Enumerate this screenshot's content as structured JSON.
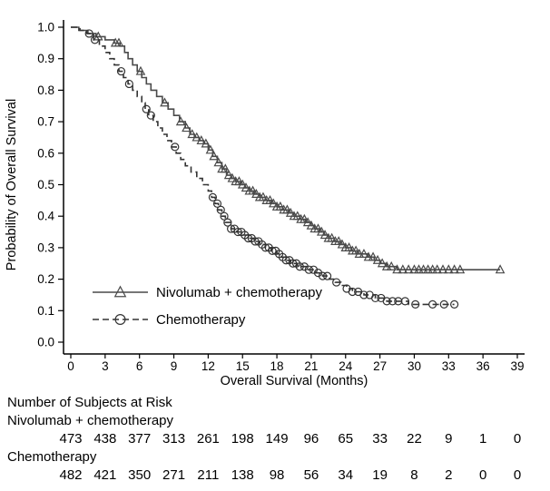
{
  "chart_data": {
    "type": "line",
    "subtype": "kaplan-meier-step",
    "title": "",
    "xlabel": "Overall Survival (Months)",
    "ylabel": "Probability of Overall Survival",
    "xlim": [
      0,
      39
    ],
    "ylim": [
      0.0,
      1.0
    ],
    "xticks": [
      0,
      3,
      6,
      9,
      12,
      15,
      18,
      21,
      24,
      27,
      30,
      33,
      36,
      39
    ],
    "yticks": [
      0.0,
      0.1,
      0.2,
      0.3,
      0.4,
      0.5,
      0.6,
      0.7,
      0.8,
      0.9,
      1.0
    ],
    "grid": false,
    "legend_position": "inside-lower-left",
    "colors": {
      "axis": "#000000",
      "series1": "#4a4a4a",
      "series2": "#333333"
    },
    "series": [
      {
        "name": "Nivolumab + chemotherapy",
        "marker": "triangle",
        "line": "solid",
        "color": "#4a4a4a",
        "points": [
          [
            0,
            1.0
          ],
          [
            0.7,
            0.99
          ],
          [
            1.5,
            0.98
          ],
          [
            2.2,
            0.97
          ],
          [
            3.0,
            0.96
          ],
          [
            3.8,
            0.95
          ],
          [
            4.3,
            0.94
          ],
          [
            4.7,
            0.92
          ],
          [
            5.0,
            0.9
          ],
          [
            5.4,
            0.88
          ],
          [
            5.8,
            0.86
          ],
          [
            6.2,
            0.84
          ],
          [
            6.6,
            0.82
          ],
          [
            7.0,
            0.8
          ],
          [
            7.5,
            0.78
          ],
          [
            8.0,
            0.76
          ],
          [
            8.5,
            0.74
          ],
          [
            9.0,
            0.72
          ],
          [
            9.5,
            0.7
          ],
          [
            10.0,
            0.68
          ],
          [
            10.4,
            0.66
          ],
          [
            10.8,
            0.65
          ],
          [
            11.2,
            0.64
          ],
          [
            11.6,
            0.63
          ],
          [
            12.0,
            0.61
          ],
          [
            12.4,
            0.59
          ],
          [
            12.8,
            0.57
          ],
          [
            13.2,
            0.55
          ],
          [
            13.6,
            0.53
          ],
          [
            14.0,
            0.52
          ],
          [
            14.4,
            0.51
          ],
          [
            14.8,
            0.5
          ],
          [
            15.2,
            0.49
          ],
          [
            15.6,
            0.48
          ],
          [
            16.0,
            0.47
          ],
          [
            16.5,
            0.46
          ],
          [
            17.0,
            0.45
          ],
          [
            17.5,
            0.44
          ],
          [
            18.0,
            0.43
          ],
          [
            18.5,
            0.42
          ],
          [
            19.0,
            0.41
          ],
          [
            19.5,
            0.4
          ],
          [
            20.0,
            0.39
          ],
          [
            20.5,
            0.38
          ],
          [
            21.0,
            0.37
          ],
          [
            21.3,
            0.36
          ],
          [
            21.7,
            0.35
          ],
          [
            22.1,
            0.34
          ],
          [
            22.5,
            0.33
          ],
          [
            23.0,
            0.32
          ],
          [
            23.5,
            0.31
          ],
          [
            24.0,
            0.3
          ],
          [
            24.5,
            0.29
          ],
          [
            25.0,
            0.28
          ],
          [
            26.0,
            0.27
          ],
          [
            26.5,
            0.26
          ],
          [
            27.0,
            0.25
          ],
          [
            27.6,
            0.24
          ],
          [
            28.5,
            0.23
          ],
          [
            37.5,
            0.23
          ]
        ],
        "censor_marks": [
          2.4,
          3.9,
          4.2,
          6.1,
          8.2,
          9.6,
          10.1,
          10.6,
          11.0,
          11.4,
          11.8,
          12.2,
          12.5,
          12.9,
          13.2,
          13.5,
          13.8,
          14.1,
          14.4,
          14.7,
          15.0,
          15.3,
          15.6,
          15.9,
          16.2,
          16.5,
          16.8,
          17.1,
          17.4,
          17.7,
          18.0,
          18.3,
          18.6,
          18.9,
          19.2,
          19.5,
          19.8,
          20.1,
          20.4,
          20.7,
          21.0,
          21.3,
          21.6,
          21.9,
          22.2,
          22.5,
          22.8,
          23.1,
          23.4,
          23.7,
          24.0,
          24.3,
          24.6,
          24.9,
          25.2,
          25.6,
          26.0,
          26.4,
          26.8,
          27.2,
          27.6,
          28.0,
          28.5,
          29.0,
          29.5,
          30.0,
          30.4,
          30.8,
          31.2,
          31.6,
          32.0,
          32.5,
          33.0,
          33.5,
          34.0,
          37.5
        ]
      },
      {
        "name": "Chemotherapy",
        "marker": "circle",
        "line": "dashed",
        "color": "#333333",
        "points": [
          [
            0,
            1.0
          ],
          [
            0.8,
            0.99
          ],
          [
            1.4,
            0.98
          ],
          [
            2.0,
            0.96
          ],
          [
            2.5,
            0.94
          ],
          [
            3.0,
            0.92
          ],
          [
            3.4,
            0.9
          ],
          [
            3.8,
            0.88
          ],
          [
            4.2,
            0.86
          ],
          [
            4.6,
            0.84
          ],
          [
            5.0,
            0.82
          ],
          [
            5.4,
            0.8
          ],
          [
            5.8,
            0.78
          ],
          [
            6.2,
            0.76
          ],
          [
            6.5,
            0.74
          ],
          [
            6.8,
            0.72
          ],
          [
            7.2,
            0.7
          ],
          [
            7.6,
            0.68
          ],
          [
            8.0,
            0.66
          ],
          [
            8.4,
            0.64
          ],
          [
            8.8,
            0.62
          ],
          [
            9.2,
            0.6
          ],
          [
            9.6,
            0.58
          ],
          [
            10.0,
            0.56
          ],
          [
            10.5,
            0.54
          ],
          [
            11.0,
            0.52
          ],
          [
            11.5,
            0.5
          ],
          [
            12.0,
            0.48
          ],
          [
            12.3,
            0.46
          ],
          [
            12.6,
            0.44
          ],
          [
            12.9,
            0.42
          ],
          [
            13.2,
            0.4
          ],
          [
            13.5,
            0.38
          ],
          [
            14.0,
            0.36
          ],
          [
            14.5,
            0.35
          ],
          [
            15.0,
            0.34
          ],
          [
            15.5,
            0.33
          ],
          [
            16.0,
            0.32
          ],
          [
            16.5,
            0.31
          ],
          [
            17.0,
            0.3
          ],
          [
            17.5,
            0.29
          ],
          [
            18.0,
            0.28
          ],
          [
            18.4,
            0.27
          ],
          [
            18.8,
            0.26
          ],
          [
            19.2,
            0.25
          ],
          [
            19.8,
            0.24
          ],
          [
            20.6,
            0.23
          ],
          [
            21.4,
            0.22
          ],
          [
            22.0,
            0.21
          ],
          [
            22.6,
            0.2
          ],
          [
            23.1,
            0.19
          ],
          [
            23.6,
            0.18
          ],
          [
            24.1,
            0.17
          ],
          [
            24.6,
            0.16
          ],
          [
            25.6,
            0.15
          ],
          [
            26.6,
            0.14
          ],
          [
            27.6,
            0.13
          ],
          [
            29.5,
            0.12
          ],
          [
            33.5,
            0.12
          ]
        ],
        "censor_marks": [
          1.6,
          2.1,
          4.4,
          5.1,
          6.6,
          7.0,
          9.1,
          12.4,
          12.8,
          13.1,
          13.4,
          13.7,
          14.0,
          14.3,
          14.6,
          14.9,
          15.2,
          15.5,
          15.8,
          16.1,
          16.4,
          16.7,
          17.0,
          17.3,
          17.6,
          17.9,
          18.2,
          18.5,
          18.8,
          19.1,
          19.4,
          19.7,
          20.0,
          20.4,
          20.8,
          21.2,
          21.6,
          22.0,
          22.4,
          23.2,
          24.1,
          24.6,
          25.1,
          25.6,
          26.1,
          26.6,
          27.1,
          27.6,
          28.1,
          28.6,
          29.2,
          30.1,
          31.6,
          32.6,
          33.5
        ]
      }
    ],
    "risk_table": {
      "title": "Number of Subjects at Risk",
      "rows": [
        {
          "label": "Nivolumab + chemotherapy",
          "values": [
            473,
            438,
            377,
            313,
            261,
            198,
            149,
            96,
            65,
            33,
            22,
            9,
            1,
            0
          ]
        },
        {
          "label": "Chemotherapy",
          "values": [
            482,
            421,
            350,
            271,
            211,
            138,
            98,
            56,
            34,
            19,
            8,
            2,
            0,
            0
          ]
        }
      ]
    }
  }
}
